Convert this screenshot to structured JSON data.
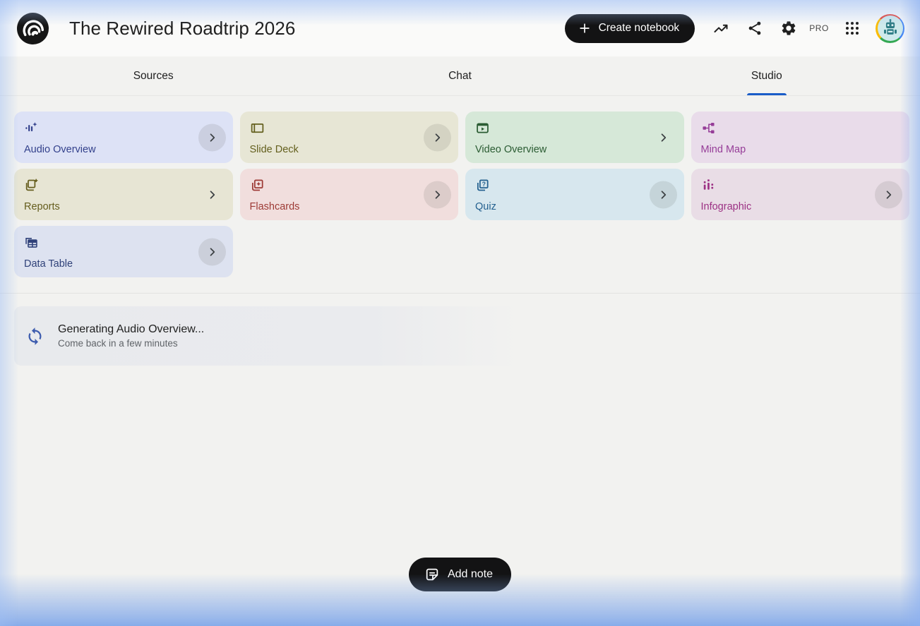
{
  "header": {
    "logo_icon": "notebooklm-logo-icon",
    "title": "The Rewired Roadtrip 2026",
    "create_notebook_label": "Create notebook",
    "pro_badge": "PRO",
    "action_icons": [
      "trending-up-icon",
      "share-icon",
      "settings-gear-icon",
      "google-apps-grid-icon",
      "user-avatar-robot"
    ]
  },
  "tabs": [
    {
      "label": "Sources",
      "active": false
    },
    {
      "label": "Chat",
      "active": false
    },
    {
      "label": "Studio",
      "active": true
    }
  ],
  "studio": {
    "cards": [
      {
        "label": "Audio Overview",
        "icon": "audio-waveform-sparkle-icon",
        "bg": "#dde2f6",
        "fg": "#33418c",
        "chevron": "circled"
      },
      {
        "label": "Slide Deck",
        "icon": "slide-deck-icon",
        "bg": "#e7e6d5",
        "fg": "#635f1d",
        "chevron": "circled"
      },
      {
        "label": "Video Overview",
        "icon": "video-frame-play-icon",
        "bg": "#d6e8d8",
        "fg": "#2b5c33",
        "chevron": "plain"
      },
      {
        "label": "Mind Map",
        "icon": "mind-map-nodes-icon",
        "bg": "#e9dcea",
        "fg": "#963d98",
        "chevron": "none"
      },
      {
        "label": "Reports",
        "icon": "report-stack-add-icon",
        "bg": "#e7e5d4",
        "fg": "#655d1d",
        "chevron": "plain"
      },
      {
        "label": "Flashcards",
        "icon": "flashcards-star-icon",
        "bg": "#f1dedd",
        "fg": "#9d3a35",
        "chevron": "circled"
      },
      {
        "label": "Quiz",
        "icon": "quiz-cards-question-icon",
        "bg": "#d7e7ee",
        "fg": "#23608f",
        "chevron": "circled"
      },
      {
        "label": "Infographic",
        "icon": "infographic-bars-icon",
        "bg": "#e9dde6",
        "fg": "#9c3184",
        "chevron": "circled"
      },
      {
        "label": "Data Table",
        "icon": "data-table-grid-icon",
        "bg": "#dde2f0",
        "fg": "#2f4179",
        "chevron": "circled"
      }
    ],
    "status": {
      "icon": "sync-progress-icon",
      "title": "Generating Audio Overview...",
      "subtitle": "Come back in a few minutes"
    },
    "add_note_label": "Add note",
    "add_note_icon": "note-edit-icon"
  },
  "colors": {
    "accent_tab_underline": "#1a5cc8",
    "primary_button_bg": "#131314",
    "ambient_glow": "#86abe9",
    "spinner_blue": "#3d5cae"
  }
}
